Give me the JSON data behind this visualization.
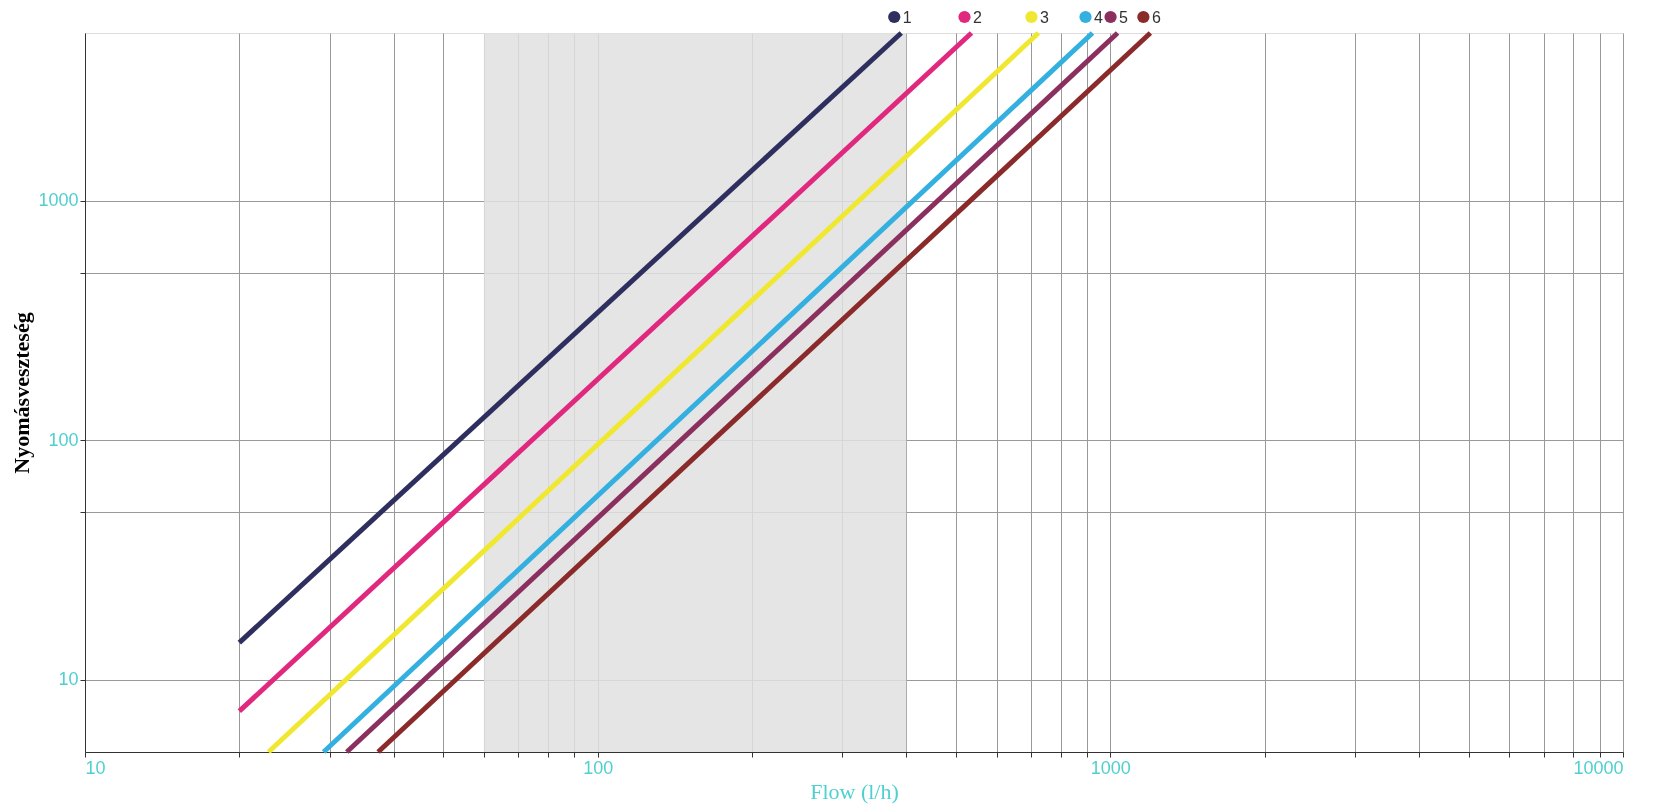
{
  "chart_data": {
    "type": "line",
    "xlabel": "Flow (l/h)",
    "ylabel": "Nyomásveszteség",
    "log": "xy",
    "grid": true,
    "legend": "top",
    "marker": "none",
    "line_style": "solid",
    "xlim": [
      10,
      10000
    ],
    "ylim": [
      5,
      5000
    ],
    "xticks": [
      10,
      {
        "value": 20,
        "label": null
      },
      {
        "value": 30,
        "label": null
      },
      {
        "value": 40,
        "label": null
      },
      {
        "value": 50,
        "label": null
      },
      {
        "value": 60,
        "label": null
      },
      {
        "value": 70,
        "label": null
      },
      {
        "value": 80,
        "label": null
      },
      {
        "value": 90,
        "label": null
      },
      100,
      {
        "value": 200,
        "label": null
      },
      {
        "value": 300,
        "label": null
      },
      {
        "value": 400,
        "label": null
      },
      {
        "value": 500,
        "label": null
      },
      {
        "value": 600,
        "label": null
      },
      {
        "value": 700,
        "label": null
      },
      {
        "value": 800,
        "label": null
      },
      {
        "value": 900,
        "label": null
      },
      1000,
      {
        "value": 2000,
        "label": null
      },
      {
        "value": 3000,
        "label": null
      },
      {
        "value": 4000,
        "label": null
      },
      {
        "value": 5000,
        "label": null
      },
      {
        "value": 6000,
        "label": null
      },
      {
        "value": 7000,
        "label": null
      },
      {
        "value": 8000,
        "label": null
      },
      {
        "value": 9000,
        "label": null
      },
      10000
    ],
    "yticks": [
      10,
      {
        "value": 50,
        "label": null
      },
      100,
      {
        "value": 500,
        "label": null
      },
      1000
    ],
    "bands": [
      {
        "axis": "x",
        "from": 60,
        "to": 400,
        "color": "#e0e0e0"
      }
    ],
    "series": [
      {
        "name": "1",
        "color": "#2e2f5e",
        "x": [
          20,
          391
        ],
        "values": [
          14.3,
          5000
        ]
      },
      {
        "name": "2",
        "color": "#e0287f",
        "x": [
          20,
          536
        ],
        "values": [
          7.4,
          5000
        ]
      },
      {
        "name": "3",
        "color": "#f0e830",
        "x": [
          22.8,
          724
        ],
        "values": [
          5,
          5000
        ]
      },
      {
        "name": "4",
        "color": "#33b0e0",
        "x": [
          29.2,
          923
        ],
        "values": [
          5,
          5000
        ]
      },
      {
        "name": "5",
        "color": "#8b2f5e",
        "x": [
          32.4,
          1033
        ],
        "values": [
          5,
          5000
        ]
      },
      {
        "name": "6",
        "color": "#8b2a2a",
        "x": [
          37.3,
          1197
        ],
        "values": [
          5,
          5000
        ]
      }
    ]
  }
}
